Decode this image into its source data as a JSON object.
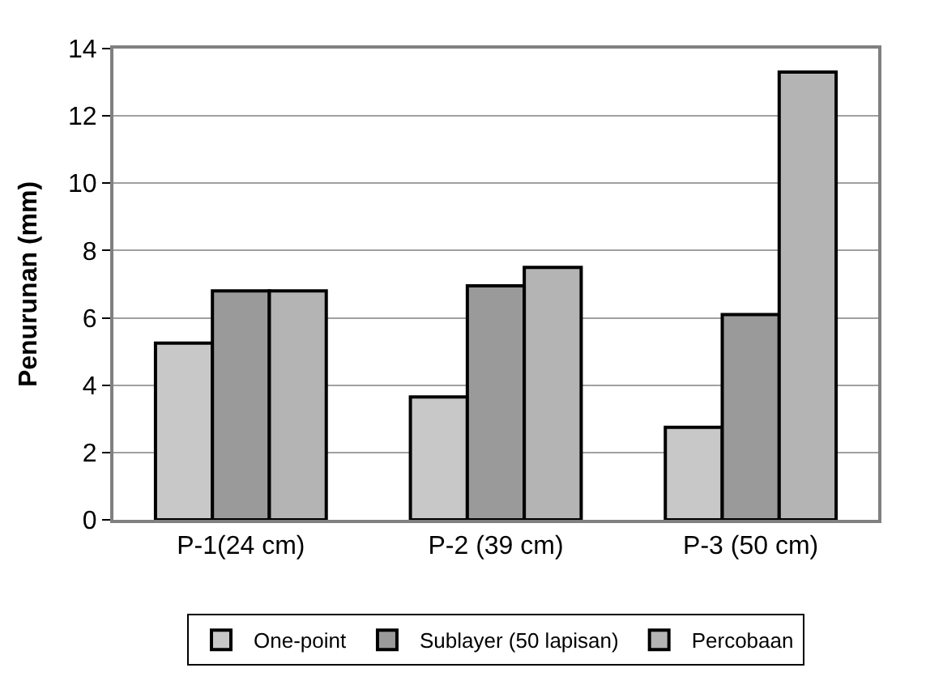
{
  "chart_data": {
    "type": "bar",
    "ylabel": "Penurunan (mm)",
    "categories": [
      "P-1(24 cm)",
      "P-2 (39 cm)",
      "P-3 (50 cm)"
    ],
    "series": [
      {
        "name": "One-point",
        "color": "#c8c8c8",
        "values": [
          5.25,
          3.65,
          2.75
        ]
      },
      {
        "name": "Sublayer (50 lapisan)",
        "color": "#9a9a9a",
        "values": [
          6.8,
          6.95,
          6.1
        ]
      },
      {
        "name": "Percobaan",
        "color": "#b4b4b4",
        "values": [
          6.8,
          7.5,
          13.3
        ]
      }
    ],
    "ylim": [
      0,
      14
    ],
    "yticks": [
      0,
      2,
      4,
      6,
      8,
      10,
      12,
      14
    ],
    "grid": "y",
    "legend": "bottom"
  }
}
